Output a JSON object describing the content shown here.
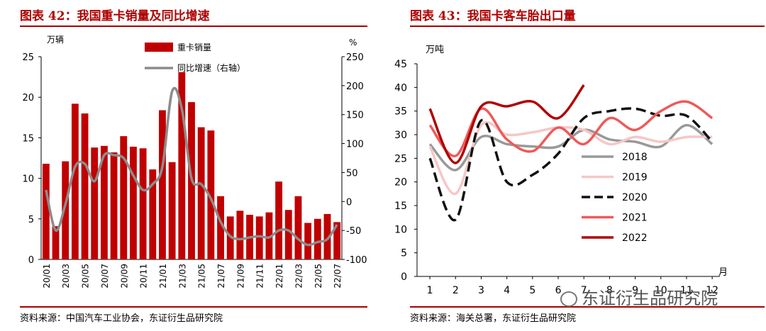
{
  "left_panel": {
    "title": "图表 42：我国重卡销量及同比增速",
    "source": "资料来源：中国汽车工业协会，东证衍生品研究院"
  },
  "right_panel": {
    "title": "图表 43：我国卡客车胎出口量",
    "source": "资料来源：海关总署，东证衍生品研究院"
  },
  "watermark": {
    "text": "东证衍生品研究院",
    "icon": "wechat-icon"
  },
  "chart_data": [
    {
      "type": "bar",
      "ylabel": "万辆",
      "y2label": "%",
      "ylim": [
        0,
        25
      ],
      "y_ticks": [
        0,
        5,
        10,
        15,
        20,
        25
      ],
      "y2lim": [
        -100,
        250
      ],
      "y2_ticks": [
        -100,
        -50,
        0,
        50,
        100,
        150,
        200,
        250
      ],
      "x_tick_labels": [
        "20/01",
        "20/03",
        "20/05",
        "20/07",
        "20/09",
        "20/11",
        "21/01",
        "21/03",
        "21/05",
        "21/07",
        "21/09",
        "21/11",
        "22/01",
        "22/03",
        "22/05",
        "22/07"
      ],
      "categories": [
        "20/01",
        "20/02",
        "20/03",
        "20/04",
        "20/05",
        "20/06",
        "20/07",
        "20/08",
        "20/09",
        "20/10",
        "20/11",
        "20/12",
        "21/01",
        "21/02",
        "21/03",
        "21/04",
        "21/05",
        "21/06",
        "21/07",
        "21/08",
        "21/09",
        "21/10",
        "21/11",
        "21/12",
        "22/01",
        "22/02",
        "22/03",
        "22/04",
        "22/05",
        "22/06",
        "22/07"
      ],
      "legend_position": "top",
      "bar_color": "#c00000",
      "line_color": "#8c8c8c",
      "series": [
        {
          "name": "重卡销量",
          "axis": "left",
          "type": "bar",
          "values": [
            11.8,
            4.1,
            12.1,
            19.2,
            18.0,
            13.8,
            14.0,
            13.2,
            15.2,
            13.9,
            13.7,
            11.1,
            18.4,
            12.0,
            23.1,
            19.4,
            16.3,
            15.9,
            7.8,
            5.3,
            6.0,
            5.5,
            5.3,
            5.8,
            9.6,
            6.1,
            7.8,
            4.5,
            5.0,
            5.6,
            4.6
          ]
        },
        {
          "name": "同比增速（右轴）",
          "axis": "right",
          "type": "line",
          "values": [
            20,
            -50,
            -5,
            60,
            65,
            35,
            80,
            80,
            75,
            45,
            20,
            30,
            60,
            190,
            160,
            40,
            30,
            5,
            -35,
            -60,
            -65,
            -62,
            -60,
            -62,
            -50,
            -50,
            -65,
            -75,
            -70,
            -65,
            -40
          ]
        }
      ]
    },
    {
      "type": "line",
      "ylabel": "万吨",
      "xlabel": "月",
      "ylim": [
        0,
        45
      ],
      "y_ticks": [
        0,
        5,
        10,
        15,
        20,
        25,
        30,
        35,
        40,
        45
      ],
      "xlim": [
        0.5,
        12.3
      ],
      "x_ticks": [
        1,
        2,
        3,
        4,
        5,
        6,
        7,
        8,
        9,
        10,
        11,
        12
      ],
      "legend_position": "center-left",
      "series": [
        {
          "name": "2018",
          "color": "#999999",
          "dash": "none",
          "x": [
            1,
            2,
            3,
            4,
            5,
            6,
            7,
            8,
            9,
            10,
            11,
            12
          ],
          "values": [
            28,
            22.5,
            29.5,
            28,
            27.5,
            27.5,
            31,
            29,
            28.5,
            27.5,
            32,
            28
          ]
        },
        {
          "name": "2019",
          "color": "#f7c6c6",
          "dash": "none",
          "x": [
            1,
            2,
            3,
            4,
            5,
            6,
            7,
            8,
            9,
            10,
            11,
            12
          ],
          "values": [
            27.5,
            17.5,
            32,
            30,
            30.5,
            31.5,
            31,
            28,
            29.5,
            28.5,
            29.5,
            29.5
          ]
        },
        {
          "name": "2020",
          "color": "#111111",
          "dash": "14,7",
          "x": [
            1,
            2,
            3,
            4,
            5,
            6,
            7,
            8,
            9,
            10,
            11,
            12
          ],
          "values": [
            25,
            12,
            33,
            20,
            21.5,
            26,
            33.5,
            35,
            35.5,
            34,
            34,
            28.5
          ]
        },
        {
          "name": "2021",
          "color": "#ee5a5a",
          "dash": "none",
          "x": [
            1,
            2,
            3,
            4,
            5,
            6,
            7,
            8,
            9,
            10,
            11,
            12
          ],
          "values": [
            32,
            25.5,
            35.5,
            29,
            26.5,
            31.5,
            28,
            33.5,
            31,
            35,
            37,
            33.5
          ]
        },
        {
          "name": "2022",
          "color": "#b00000",
          "dash": "none",
          "x": [
            1,
            2,
            3,
            4,
            5,
            6,
            7
          ],
          "values": [
            35.5,
            24,
            36,
            36,
            37,
            33.5,
            40.5
          ]
        }
      ]
    }
  ]
}
